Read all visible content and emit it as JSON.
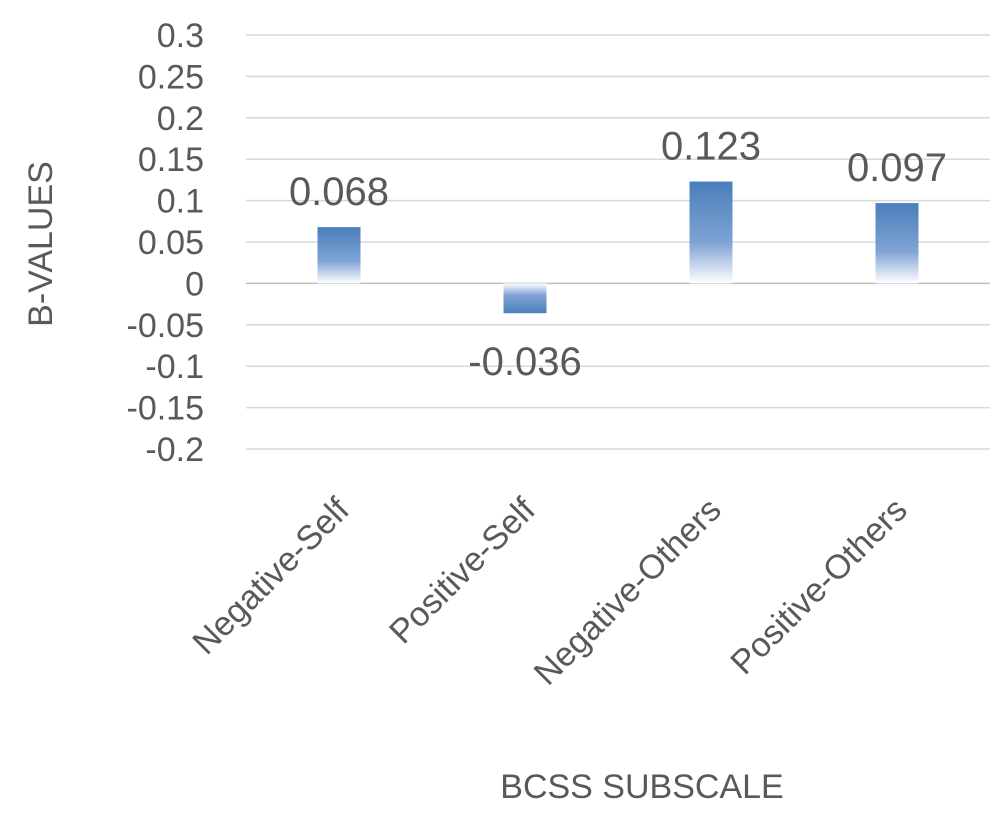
{
  "chart_data": {
    "type": "bar",
    "categories": [
      "Negative-Self",
      "Positive-Self",
      "Negative-Others",
      "Positive-Others"
    ],
    "values": [
      0.068,
      -0.036,
      0.123,
      0.097
    ],
    "data_labels": [
      "0.068",
      "-0.036",
      "0.123",
      "0.097"
    ],
    "title": "",
    "xlabel": "BCSS SUBSCALE",
    "ylabel": "B-VALUES",
    "ylim": [
      -0.2,
      0.3
    ],
    "y_ticks": [
      0.3,
      0.25,
      0.2,
      0.15,
      0.1,
      0.05,
      0,
      -0.05,
      -0.1,
      -0.15,
      -0.2
    ],
    "y_tick_labels": [
      "0.3",
      "0.25",
      "0.2",
      "0.15",
      "0.1",
      "0.05",
      "0",
      "-0.05",
      "-0.1",
      "-0.15",
      "-0.2"
    ],
    "grid": true,
    "legend": "none",
    "bar_color": "#4a7ebb"
  }
}
